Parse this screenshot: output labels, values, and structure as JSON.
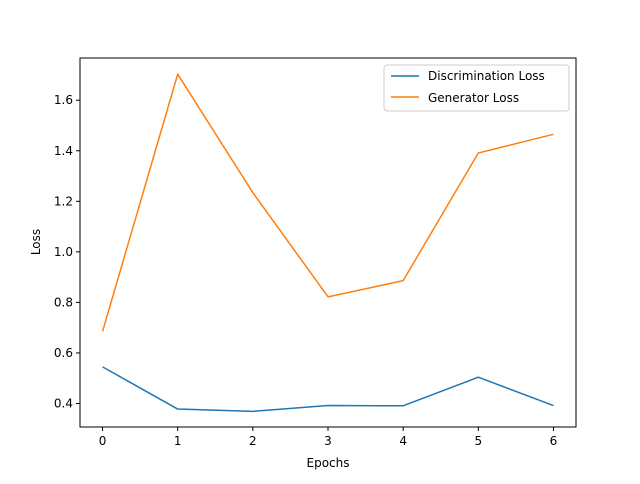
{
  "chart_data": {
    "type": "line",
    "title": "",
    "xlabel": "Epochs",
    "ylabel": "Loss",
    "x": [
      0,
      1,
      2,
      3,
      4,
      5,
      6
    ],
    "xlim": [
      -0.3,
      6.3
    ],
    "ylim": [
      0.307,
      1.767
    ],
    "xticks": [
      0,
      1,
      2,
      3,
      4,
      5,
      6
    ],
    "yticks": [
      0.4,
      0.6,
      0.8,
      1.0,
      1.2,
      1.4,
      1.6
    ],
    "ytick_labels": [
      "0.4",
      "0.6",
      "0.8",
      "1.0",
      "1.2",
      "1.4",
      "1.6"
    ],
    "grid": false,
    "legend_position": "top-right",
    "series": [
      {
        "name": "Discrimination Loss",
        "color": "#1f77b4",
        "values": [
          0.545,
          0.378,
          0.369,
          0.392,
          0.391,
          0.504,
          0.392
        ]
      },
      {
        "name": "Generator Loss",
        "color": "#ff7f0e",
        "values": [
          0.685,
          1.703,
          1.234,
          0.822,
          0.886,
          1.391,
          1.465
        ]
      }
    ]
  }
}
